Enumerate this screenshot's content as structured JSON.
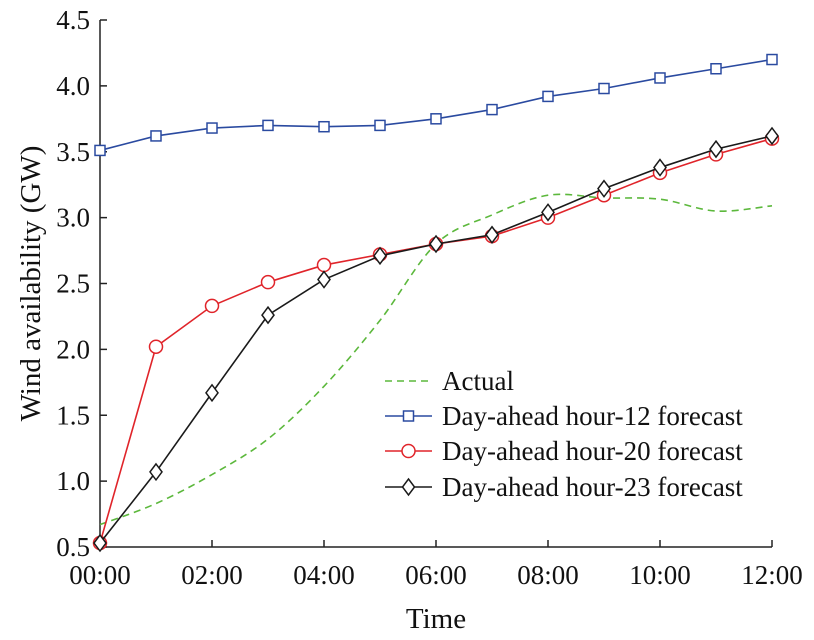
{
  "chart_data": {
    "type": "line",
    "title": "",
    "xlabel": "Time",
    "ylabel": "Wind availability (GW)",
    "x_ticks": [
      "00:00",
      "02:00",
      "04:00",
      "06:00",
      "08:00",
      "10:00",
      "12:00"
    ],
    "x_hours": [
      0,
      1,
      2,
      3,
      4,
      5,
      6,
      7,
      8,
      9,
      10,
      11,
      12
    ],
    "xlim": [
      0,
      12
    ],
    "ylim": [
      0.5,
      4.5
    ],
    "y_ticks": [
      "0.5",
      "1.0",
      "1.5",
      "2.0",
      "2.5",
      "3.0",
      "3.5",
      "4.0",
      "4.5"
    ],
    "grid": false,
    "legend_position": "lower-right",
    "series": [
      {
        "name": "Actual",
        "color": "#5cb83c",
        "style": "dashed",
        "marker": "none",
        "values": [
          0.67,
          0.83,
          1.05,
          1.32,
          1.72,
          2.22,
          2.8,
          3.02,
          3.17,
          3.15,
          3.14,
          3.05,
          3.09
        ]
      },
      {
        "name": "Day-ahead hour-12 forecast",
        "color": "#2a4aa0",
        "style": "solid",
        "marker": "square",
        "values": [
          3.51,
          3.62,
          3.68,
          3.7,
          3.69,
          3.7,
          3.75,
          3.82,
          3.92,
          3.98,
          4.06,
          4.13,
          4.2
        ]
      },
      {
        "name": "Day-ahead hour-20 forecast",
        "color": "#e0242a",
        "style": "solid",
        "marker": "circle",
        "values": [
          0.53,
          2.02,
          2.33,
          2.51,
          2.64,
          2.72,
          2.8,
          2.86,
          3.0,
          3.17,
          3.34,
          3.48,
          3.6
        ]
      },
      {
        "name": "Day-ahead hour-23 forecast",
        "color": "#1a1a1a",
        "style": "solid",
        "marker": "diamond",
        "values": [
          0.53,
          1.07,
          1.67,
          2.26,
          2.53,
          2.71,
          2.8,
          2.87,
          3.04,
          3.22,
          3.38,
          3.52,
          3.62
        ]
      }
    ]
  }
}
